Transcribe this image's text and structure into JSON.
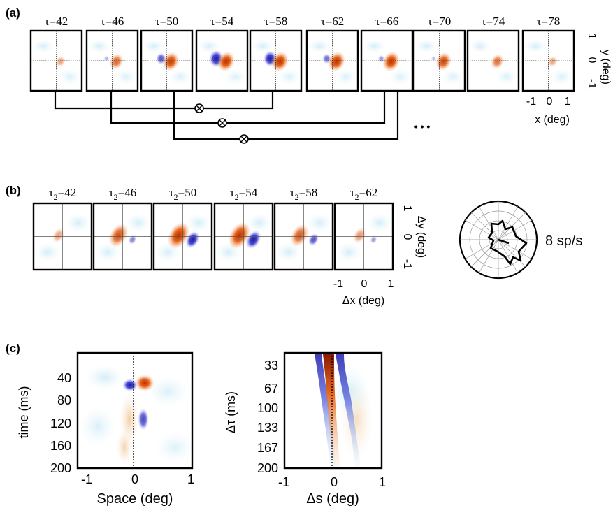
{
  "panel_a": {
    "label": "(a)",
    "tau_labels": [
      "τ=42",
      "τ=46",
      "τ=50",
      "τ=54",
      "τ=58",
      "τ=62",
      "τ=66",
      "τ=70",
      "τ=74",
      "τ=78"
    ],
    "y_axis": {
      "label": "y (deg)",
      "ticks": [
        "1",
        "0",
        "-1"
      ]
    },
    "x_axis": {
      "label": "x (deg)",
      "ticks": [
        "-1",
        "0",
        "1"
      ]
    },
    "operator_symbol": "⊗",
    "ellipsis": "• • •"
  },
  "panel_b": {
    "label": "(b)",
    "tau2_prefix": "τ",
    "tau2_subscript": "2",
    "tau2_values": [
      "=42",
      "=46",
      "=50",
      "=54",
      "=58",
      "=62"
    ],
    "y_axis": {
      "label": "Δy (deg)",
      "ticks": [
        "1",
        "0",
        "-1"
      ]
    },
    "x_axis": {
      "label": "Δx (deg)",
      "ticks": [
        "-1",
        "0",
        "1"
      ]
    },
    "polar_scale_label": "8 sp/s"
  },
  "panel_c": {
    "label": "(c)",
    "left_plot": {
      "ylabel": "time (ms)",
      "yticks": [
        "40",
        "80",
        "120",
        "160",
        "200"
      ],
      "xlabel": "Space (deg)",
      "xticks": [
        "-1",
        "0",
        "1"
      ]
    },
    "right_plot": {
      "ylabel": "Δτ (ms)",
      "yticks": [
        "33",
        "67",
        "100",
        "133",
        "167",
        "200"
      ],
      "xlabel": "Δs (deg)",
      "xticks": [
        "-1",
        "0",
        "1"
      ]
    }
  },
  "colors": {
    "on_response": "#e8641a",
    "off_response": "#3a3acc",
    "frame": "#000000"
  }
}
